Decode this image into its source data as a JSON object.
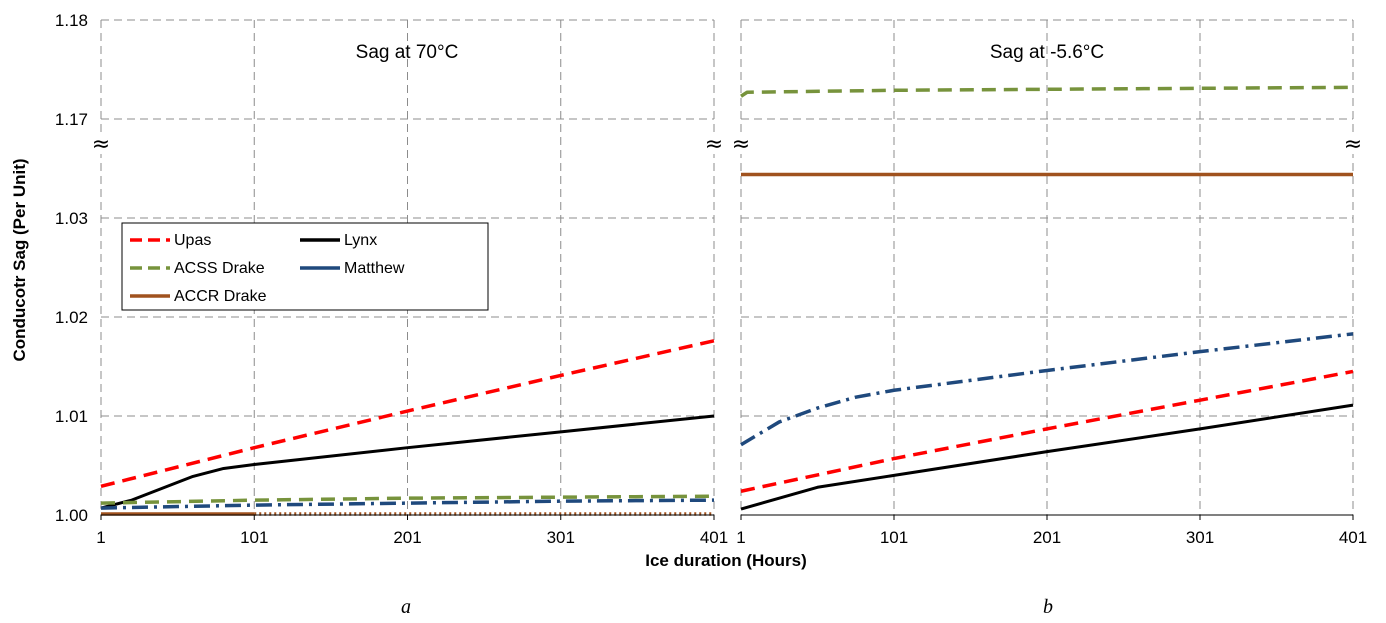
{
  "chart_data": [
    {
      "type": "line",
      "panel_label": "a",
      "title": "Sag at 70°C",
      "xlabel": "Ice duration (Hours)",
      "ylabel": "Conducotr Sag (Per Unit)",
      "xlim": [
        1,
        401
      ],
      "x_ticks": [
        "1",
        "101",
        "201",
        "301",
        "401"
      ],
      "y_ticks": [
        "1.00",
        "1.01",
        "1.02",
        "1.03",
        "1.17",
        "1.18"
      ],
      "y_axis_broken": true,
      "grid": true,
      "legend_position": "upper-left",
      "series": [
        {
          "name": "Upas",
          "style": "dash",
          "color": "#ff0000",
          "x": [
            1,
            101,
            201,
            301,
            401
          ],
          "y": [
            1.0029,
            1.0068,
            1.0105,
            1.0141,
            1.0176
          ]
        },
        {
          "name": "Lynx",
          "style": "solid",
          "color": "#000000",
          "x": [
            1,
            21,
            41,
            61,
            81,
            101,
            201,
            301,
            401
          ],
          "y": [
            1.0007,
            1.0015,
            1.0027,
            1.0039,
            1.0047,
            1.0051,
            1.0068,
            1.0084,
            1.01
          ]
        },
        {
          "name": "ACSS Drake",
          "style": "dash",
          "color": "#77933c",
          "x": [
            1,
            101,
            201,
            301,
            401
          ],
          "y": [
            1.0012,
            1.0015,
            1.0017,
            1.0018,
            1.0019
          ]
        },
        {
          "name": "Matthew",
          "style": "dashdot",
          "color": "#1f497d",
          "x": [
            1,
            101,
            201,
            301,
            401
          ],
          "y": [
            1.0007,
            1.001,
            1.0012,
            1.0014,
            1.0015
          ]
        },
        {
          "name": "ACCR Drake",
          "style": "solid-then-dotted",
          "color": "#a0521e",
          "x": [
            1,
            101,
            401
          ],
          "y": [
            1.0001,
            1.0001,
            1.0001
          ]
        }
      ]
    },
    {
      "type": "line",
      "panel_label": "b",
      "title": "Sag at -5.6°C",
      "xlim": [
        1,
        401
      ],
      "x_ticks": [
        "1",
        "101",
        "201",
        "301",
        "401"
      ],
      "y_axis_broken": true,
      "grid": true,
      "series": [
        {
          "name": "Upas",
          "style": "dash",
          "color": "#ff0000",
          "x": [
            1,
            101,
            201,
            301,
            401
          ],
          "y": [
            1.0024,
            1.0057,
            1.0087,
            1.0116,
            1.0145
          ]
        },
        {
          "name": "Lynx",
          "style": "solid",
          "color": "#000000",
          "x": [
            1,
            51,
            101,
            201,
            301,
            401
          ],
          "y": [
            1.0006,
            1.0028,
            1.004,
            1.0064,
            1.0087,
            1.0111
          ]
        },
        {
          "name": "ACSS Drake",
          "style": "dash",
          "color": "#77933c",
          "x": [
            1,
            5,
            101,
            201,
            301,
            401
          ],
          "y": [
            1.1723,
            1.1727,
            1.1729,
            1.173,
            1.1731,
            1.1732
          ]
        },
        {
          "name": "Matthew",
          "style": "dashdot",
          "color": "#1f497d",
          "x": [
            1,
            26,
            51,
            76,
            101,
            201,
            301,
            401
          ],
          "y": [
            1.0071,
            1.0094,
            1.0108,
            1.0119,
            1.0126,
            1.0146,
            1.0165,
            1.0183
          ]
        },
        {
          "name": "ACCR Drake",
          "style": "solid",
          "color": "#a0521e",
          "x": [
            1,
            401
          ],
          "y": [
            1.0344,
            1.0344
          ]
        }
      ]
    }
  ]
}
